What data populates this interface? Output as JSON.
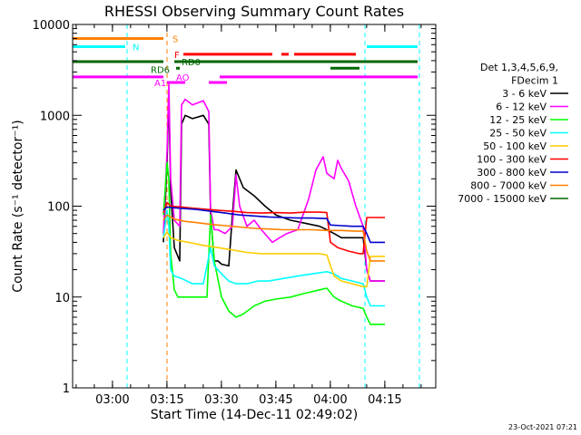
{
  "chart_data": {
    "type": "line",
    "title": "RHESSI Observing Summary Count Rates",
    "xlabel": "Start Time (14-Dec-11 02:49:02)",
    "ylabel": "Count Rate (s⁻¹ detector⁻¹)",
    "yscale": "log",
    "ylim": [
      1,
      10000
    ],
    "xlim_minutes": [
      0,
      100
    ],
    "x_start": "02:49:02",
    "x_ticks": [
      {
        "label": "03:00",
        "minutes": 10.97
      },
      {
        "label": "03:15",
        "minutes": 25.97
      },
      {
        "label": "03:30",
        "minutes": 40.97
      },
      {
        "label": "03:45",
        "minutes": 55.97
      },
      {
        "label": "04:00",
        "minutes": 70.97
      },
      {
        "label": "04:15",
        "minutes": 85.97
      }
    ],
    "y_ticks": [
      {
        "label": "1",
        "value": 1
      },
      {
        "label": "10",
        "value": 10
      },
      {
        "label": "100",
        "value": 100
      },
      {
        "label": "1000",
        "value": 1000
      },
      {
        "label": "10000",
        "value": 10000
      }
    ],
    "legend": {
      "header": [
        "Det 1,3,4,5,6,9,",
        "FDecim 1"
      ],
      "placement": "right"
    },
    "series": [
      {
        "name": "3 - 6 keV",
        "color": "#000000",
        "points": [
          [
            25,
            40
          ],
          [
            26,
            300
          ],
          [
            26.5,
            1700
          ],
          [
            27,
            150
          ],
          [
            28,
            35
          ],
          [
            29.5,
            25
          ],
          [
            30,
            800
          ],
          [
            31,
            1000
          ],
          [
            33,
            920
          ],
          [
            36,
            1000
          ],
          [
            37.5,
            800
          ],
          [
            38,
            80
          ],
          [
            39,
            25
          ],
          [
            40,
            25
          ],
          [
            41,
            23
          ],
          [
            43,
            22
          ],
          [
            44,
            80
          ],
          [
            45,
            250
          ],
          [
            47,
            160
          ],
          [
            50,
            130
          ],
          [
            53,
            100
          ],
          [
            56,
            80
          ],
          [
            60,
            70
          ],
          [
            64,
            65
          ],
          [
            68,
            60
          ],
          [
            70,
            55
          ],
          [
            72,
            50
          ],
          [
            74,
            45
          ],
          [
            77,
            45
          ],
          [
            80,
            45
          ],
          [
            81,
            20
          ],
          [
            82,
            15
          ],
          [
            86,
            15
          ]
        ]
      },
      {
        "name": "6 - 12 keV",
        "color": "#ff00ff",
        "points": [
          [
            25,
            50
          ],
          [
            26,
            400
          ],
          [
            26.5,
            2300
          ],
          [
            27,
            200
          ],
          [
            28,
            70
          ],
          [
            29.5,
            60
          ],
          [
            30,
            1300
          ],
          [
            31,
            1500
          ],
          [
            33,
            1300
          ],
          [
            36,
            1450
          ],
          [
            37.5,
            1100
          ],
          [
            38,
            90
          ],
          [
            39,
            55
          ],
          [
            40,
            55
          ],
          [
            42,
            50
          ],
          [
            44,
            60
          ],
          [
            45,
            220
          ],
          [
            46,
            100
          ],
          [
            48,
            60
          ],
          [
            50,
            70
          ],
          [
            52,
            55
          ],
          [
            55,
            40
          ],
          [
            57,
            45
          ],
          [
            59,
            50
          ],
          [
            62,
            55
          ],
          [
            65,
            120
          ],
          [
            67,
            250
          ],
          [
            69,
            350
          ],
          [
            70,
            230
          ],
          [
            72,
            200
          ],
          [
            73,
            320
          ],
          [
            74,
            260
          ],
          [
            76,
            190
          ],
          [
            78,
            100
          ],
          [
            80,
            60
          ],
          [
            81,
            20
          ],
          [
            82,
            15
          ],
          [
            86,
            15
          ]
        ]
      },
      {
        "name": "12 - 25 keV",
        "color": "#00ff00",
        "points": [
          [
            25,
            80
          ],
          [
            26,
            300
          ],
          [
            26.5,
            200
          ],
          [
            27,
            30
          ],
          [
            28,
            12
          ],
          [
            29,
            10
          ],
          [
            31,
            10
          ],
          [
            34,
            10
          ],
          [
            37,
            10
          ],
          [
            38,
            80
          ],
          [
            39,
            25
          ],
          [
            41,
            10
          ],
          [
            43,
            7
          ],
          [
            45,
            6
          ],
          [
            47,
            6.5
          ],
          [
            50,
            8
          ],
          [
            53,
            9
          ],
          [
            56,
            9.5
          ],
          [
            60,
            10
          ],
          [
            64,
            11
          ],
          [
            68,
            12
          ],
          [
            70,
            12.5
          ],
          [
            72,
            10
          ],
          [
            74,
            9
          ],
          [
            77,
            8
          ],
          [
            80,
            7.5
          ],
          [
            81,
            6
          ],
          [
            82,
            5
          ],
          [
            86,
            5
          ]
        ]
      },
      {
        "name": "25 - 50 keV",
        "color": "#00ffff",
        "points": [
          [
            25,
            45
          ],
          [
            26,
            90
          ],
          [
            26.5,
            60
          ],
          [
            27,
            20
          ],
          [
            28,
            17
          ],
          [
            30,
            16
          ],
          [
            33,
            14
          ],
          [
            36,
            14
          ],
          [
            38,
            35
          ],
          [
            39,
            22
          ],
          [
            41,
            18
          ],
          [
            43,
            15
          ],
          [
            45,
            14
          ],
          [
            48,
            14
          ],
          [
            51,
            15
          ],
          [
            54,
            15
          ],
          [
            58,
            16
          ],
          [
            62,
            17
          ],
          [
            66,
            18
          ],
          [
            70,
            19
          ],
          [
            72,
            18
          ],
          [
            74,
            16
          ],
          [
            77,
            15
          ],
          [
            80,
            14
          ],
          [
            81,
            10
          ],
          [
            82,
            8
          ],
          [
            86,
            8
          ]
        ]
      },
      {
        "name": "50 - 100 keV",
        "color": "#ffcc00",
        "points": [
          [
            25,
            45
          ],
          [
            26,
            52
          ],
          [
            27,
            45
          ],
          [
            29,
            42
          ],
          [
            32,
            40
          ],
          [
            36,
            37
          ],
          [
            40,
            35
          ],
          [
            44,
            33
          ],
          [
            48,
            31
          ],
          [
            52,
            30
          ],
          [
            56,
            30
          ],
          [
            60,
            30
          ],
          [
            64,
            30
          ],
          [
            68,
            30
          ],
          [
            70,
            29
          ],
          [
            72,
            17
          ],
          [
            74,
            15
          ],
          [
            77,
            14
          ],
          [
            80,
            13
          ],
          [
            81,
            13
          ],
          [
            82,
            28
          ],
          [
            86,
            28
          ]
        ]
      },
      {
        "name": "100 - 300 keV",
        "color": "#ff0000",
        "points": [
          [
            25,
            85
          ],
          [
            26,
            110
          ],
          [
            27,
            100
          ],
          [
            30,
            98
          ],
          [
            33,
            95
          ],
          [
            36,
            93
          ],
          [
            40,
            90
          ],
          [
            44,
            88
          ],
          [
            48,
            85
          ],
          [
            52,
            84
          ],
          [
            56,
            85
          ],
          [
            60,
            84
          ],
          [
            64,
            86
          ],
          [
            68,
            86
          ],
          [
            70,
            85
          ],
          [
            71,
            40
          ],
          [
            73,
            35
          ],
          [
            76,
            32
          ],
          [
            79,
            30
          ],
          [
            80,
            30
          ],
          [
            81,
            75
          ],
          [
            86,
            75
          ]
        ]
      },
      {
        "name": "300 - 800 keV",
        "color": "#0000cc",
        "points": [
          [
            25,
            90
          ],
          [
            26,
            98
          ],
          [
            28,
            96
          ],
          [
            31,
            94
          ],
          [
            34,
            92
          ],
          [
            38,
            88
          ],
          [
            42,
            84
          ],
          [
            46,
            80
          ],
          [
            50,
            78
          ],
          [
            54,
            76
          ],
          [
            58,
            75
          ],
          [
            62,
            74
          ],
          [
            66,
            74
          ],
          [
            70,
            73
          ],
          [
            71,
            62
          ],
          [
            74,
            61
          ],
          [
            77,
            60
          ],
          [
            80,
            60
          ],
          [
            81,
            50
          ],
          [
            82,
            40
          ],
          [
            86,
            40
          ]
        ]
      },
      {
        "name": "800 - 7000 keV",
        "color": "#ff8000",
        "points": [
          [
            25,
            70
          ],
          [
            26,
            80
          ],
          [
            28,
            72
          ],
          [
            31,
            68
          ],
          [
            34,
            66
          ],
          [
            38,
            63
          ],
          [
            42,
            61
          ],
          [
            46,
            59
          ],
          [
            50,
            57
          ],
          [
            54,
            56
          ],
          [
            58,
            55
          ],
          [
            62,
            55
          ],
          [
            66,
            55
          ],
          [
            70,
            54
          ],
          [
            74,
            54
          ],
          [
            78,
            53
          ],
          [
            80,
            53
          ],
          [
            81,
            32
          ],
          [
            82,
            25
          ],
          [
            86,
            25
          ]
        ]
      },
      {
        "name": "7000 - 15000 keV",
        "color": "#006600",
        "points": []
      }
    ],
    "flags": [
      {
        "label": "S",
        "color": "#ff8000",
        "segments": [
          [
            0,
            25
          ]
        ],
        "level": 7000
      },
      {
        "label": "N",
        "color": "#00ffff",
        "segments": [
          [
            0,
            14.5
          ],
          [
            81,
            95
          ]
        ],
        "level": 5700
      },
      {
        "label": "F",
        "color": "#ff0000",
        "segments": [
          [
            30.5,
            55
          ],
          [
            57.5,
            59.5
          ],
          [
            61,
            78
          ]
        ],
        "level": 4700
      },
      {
        "label": "RD0",
        "color": "#006600",
        "segments": [
          [
            0,
            25
          ],
          [
            28,
            95
          ]
        ],
        "level": 3900
      },
      {
        "label": "RD6",
        "color": "#006600",
        "segments": [
          [
            28.5,
            29.5
          ],
          [
            71,
            79
          ]
        ],
        "level": 3300
      },
      {
        "label": "AO",
        "color": "#ff00ff",
        "segments": [
          [
            0,
            25
          ],
          [
            40.5,
            95
          ]
        ],
        "level": 2650
      },
      {
        "label": "A1",
        "color": "#ff00ff",
        "segments": [
          [
            26,
            31
          ],
          [
            37.5,
            42.5
          ]
        ],
        "level": 2300
      }
    ],
    "vlines": [
      {
        "minutes": 15,
        "color": "#00ffff"
      },
      {
        "minutes": 26,
        "color": "#ff8000"
      },
      {
        "minutes": 80.5,
        "color": "#00ffff"
      },
      {
        "minutes": 95.5,
        "color": "#00ffff"
      }
    ],
    "grid": false
  },
  "footer": {
    "timestamp": "23-Oct-2021 07:21"
  }
}
